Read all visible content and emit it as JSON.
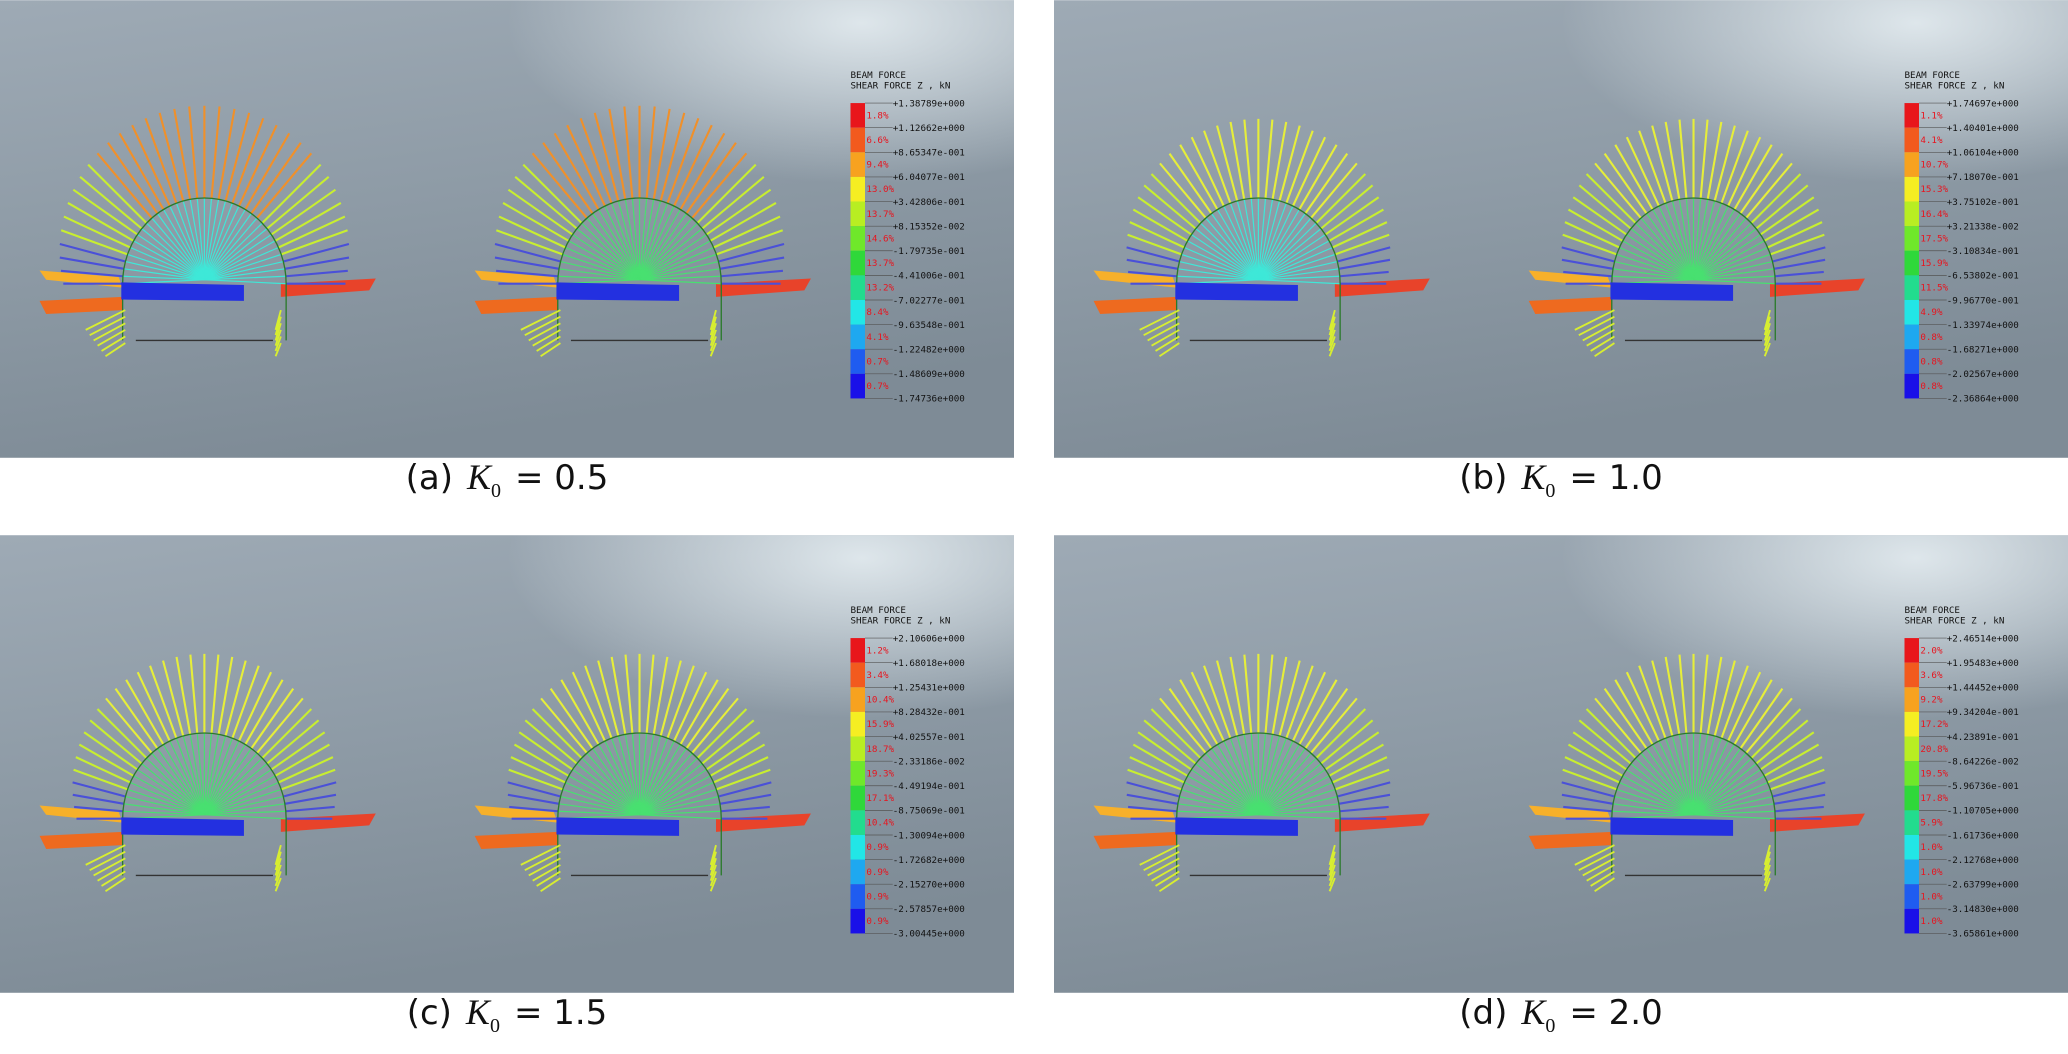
{
  "panels": [
    {
      "legend_title": [
        "BEAM FORCE",
        "SHEAR FORCE Z , kN"
      ],
      "levels": [
        "+1.38789e+000",
        "+1.12662e+000",
        "+8.65347e-001",
        "+6.04077e-001",
        "+3.42806e-001",
        "+8.15352e-002",
        "-1.79735e-001",
        "-4.41006e-001",
        "-7.02277e-001",
        "-9.63548e-001",
        "-1.22482e+000",
        "-1.48609e+000",
        "-1.74736e+000"
      ],
      "percents": [
        "1.8%",
        "6.6%",
        "9.4%",
        "13.0%",
        "13.7%",
        "14.6%",
        "13.7%",
        "13.2%",
        "8.4%",
        "4.1%",
        "0.7%",
        "0.7%"
      ],
      "caption": {
        "label": "(a)",
        "symbol": "K",
        "subscript": "0",
        "value": "= 0.5"
      }
    },
    {
      "legend_title": [
        "BEAM FORCE",
        "SHEAR FORCE Z , kN"
      ],
      "levels": [
        "+1.74697e+000",
        "+1.40401e+000",
        "+1.06104e+000",
        "+7.18070e-001",
        "+3.75102e-001",
        "+3.21338e-002",
        "-3.10834e-001",
        "-6.53802e-001",
        "-9.96770e-001",
        "-1.33974e+000",
        "-1.68271e+000",
        "-2.02567e+000",
        "-2.36864e+000"
      ],
      "percents": [
        "1.1%",
        "4.1%",
        "10.7%",
        "15.3%",
        "16.4%",
        "17.5%",
        "15.9%",
        "11.5%",
        "4.9%",
        "0.8%",
        "0.8%",
        "0.8%"
      ],
      "caption": {
        "label": "(b)",
        "symbol": "K",
        "subscript": "0",
        "value": "= 1.0"
      }
    },
    {
      "legend_title": [
        "BEAM FORCE",
        "SHEAR FORCE Z , kN"
      ],
      "levels": [
        "+2.10606e+000",
        "+1.68018e+000",
        "+1.25431e+000",
        "+8.28432e-001",
        "+4.02557e-001",
        "-2.33186e-002",
        "-4.49194e-001",
        "-8.75069e-001",
        "-1.30094e+000",
        "-1.72682e+000",
        "-2.15270e+000",
        "-2.57857e+000",
        "-3.00445e+000"
      ],
      "percents": [
        "1.2%",
        "3.4%",
        "10.4%",
        "15.9%",
        "18.7%",
        "19.3%",
        "17.1%",
        "10.4%",
        "0.9%",
        "0.9%",
        "0.9%",
        "0.9%"
      ],
      "caption": {
        "label": "(c)",
        "symbol": "K",
        "subscript": "0",
        "value": "= 1.5"
      }
    },
    {
      "legend_title": [
        "BEAM FORCE",
        "SHEAR FORCE Z , kN"
      ],
      "levels": [
        "+2.46514e+000",
        "+1.95483e+000",
        "+1.44452e+000",
        "+9.34204e-001",
        "+4.23891e-001",
        "-8.64226e-002",
        "-5.96736e-001",
        "-1.10705e+000",
        "-1.61736e+000",
        "-2.12768e+000",
        "-2.63799e+000",
        "-3.14830e+000",
        "-3.65861e+000"
      ],
      "percents": [
        "2.0%",
        "3.6%",
        "9.2%",
        "17.2%",
        "20.8%",
        "19.5%",
        "17.8%",
        "5.9%",
        "1.0%",
        "1.0%",
        "1.0%",
        "1.0%"
      ],
      "caption": {
        "label": "(d)",
        "symbol": "K",
        "subscript": "0",
        "value": "= 2.0"
      }
    }
  ]
}
